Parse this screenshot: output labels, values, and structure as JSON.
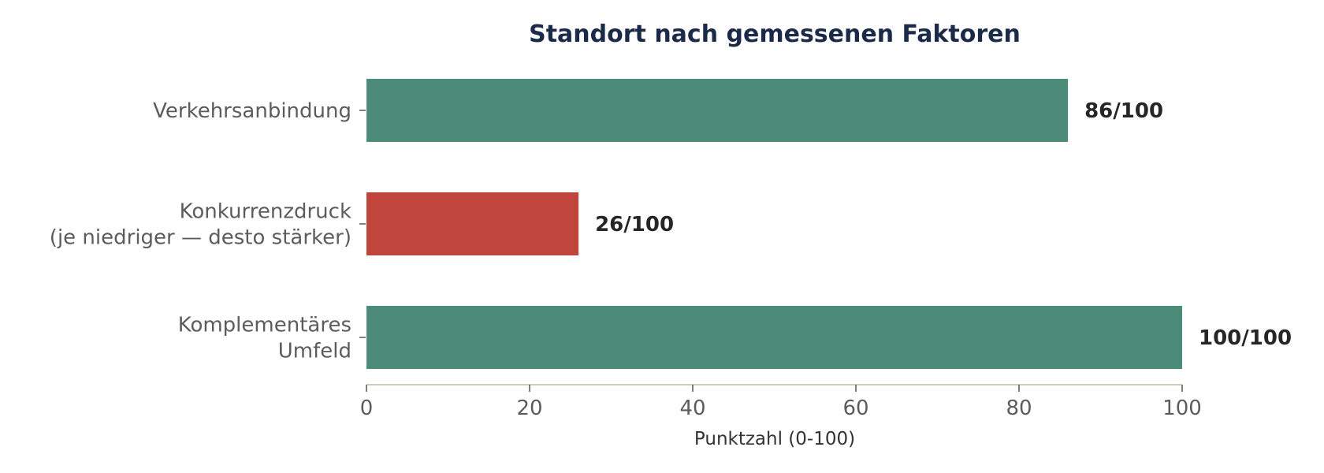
{
  "chart_data": {
    "type": "bar",
    "orientation": "horizontal",
    "title": "Standort nach gemessenen Faktoren",
    "xlabel": "Punktzahl (0-100)",
    "ylabel": "",
    "xlim": [
      0,
      100
    ],
    "xticks": [
      0,
      20,
      40,
      60,
      80,
      100
    ],
    "grid": false,
    "categories": [
      [
        "Verkehrsanbindung"
      ],
      [
        "Konkurrenzdruck",
        "(je niedriger — desto stärker)"
      ],
      [
        "Komplementäres",
        "Umfeld"
      ]
    ],
    "values": [
      86,
      26,
      100
    ],
    "value_labels": [
      "86/100",
      "26/100",
      "100/100"
    ],
    "bar_colors": [
      "#4d8b79",
      "#c0453d",
      "#4d8b79"
    ]
  },
  "colors": {
    "title": "#1c2a4a",
    "axis": "#cfcbbd",
    "text": "#5c5c5c"
  }
}
